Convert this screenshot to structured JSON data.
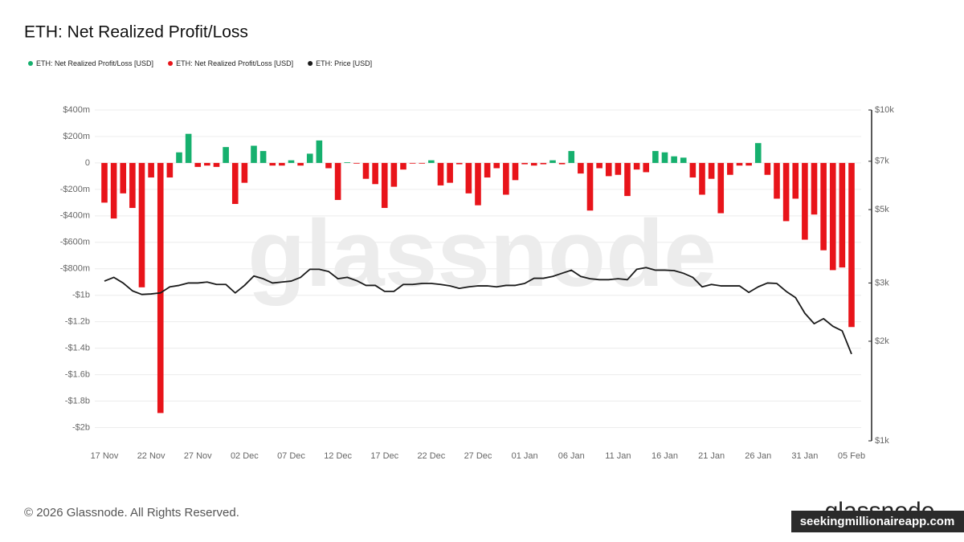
{
  "chart_data": {
    "type": "bar",
    "title": "ETH: Net Realized Profit/Loss",
    "watermark": "glassnode",
    "footer": "© 2026 Glassnode. All Rights Reserved.",
    "logo": "glassnode",
    "overlay_label": "seekingmillionaireapp.com",
    "categories": [
      "17 Nov",
      null,
      null,
      null,
      null,
      "22 Nov",
      null,
      null,
      null,
      null,
      "27 Nov",
      null,
      null,
      null,
      null,
      "02 Dec",
      null,
      null,
      null,
      null,
      "07 Dec",
      null,
      null,
      null,
      null,
      "12 Dec",
      null,
      null,
      null,
      null,
      "17 Dec",
      null,
      null,
      null,
      null,
      "22 Dec",
      null,
      null,
      null,
      null,
      "27 Dec",
      null,
      null,
      null,
      null,
      "01 Jan",
      null,
      null,
      null,
      null,
      "06 Jan",
      null,
      null,
      null,
      null,
      "11 Jan",
      null,
      null,
      null,
      null,
      "16 Jan",
      null,
      null,
      null,
      null,
      "21 Jan",
      null,
      null,
      null,
      null,
      "26 Jan",
      null,
      null,
      null,
      null,
      "31 Jan",
      null,
      null,
      null,
      null,
      "05 Feb"
    ],
    "series": [
      {
        "name": "ETH: Net Realized Profit/Loss [USD]",
        "color": "#16b06e",
        "values": [
          null,
          null,
          null,
          null,
          null,
          null,
          null,
          null,
          80000000,
          220000000,
          null,
          null,
          null,
          120000000,
          null,
          null,
          130000000,
          90000000,
          null,
          null,
          20000000,
          null,
          70000000,
          170000000,
          null,
          null,
          5000000,
          null,
          null,
          null,
          null,
          null,
          null,
          null,
          null,
          20000000,
          null,
          null,
          null,
          null,
          null,
          null,
          null,
          null,
          null,
          null,
          null,
          null,
          20000000,
          null,
          90000000,
          null,
          null,
          null,
          null,
          null,
          null,
          null,
          null,
          90000000,
          80000000,
          50000000,
          40000000,
          null,
          null,
          null,
          null,
          null,
          null,
          null,
          150000000,
          null,
          null,
          null,
          null,
          null,
          null,
          null,
          null,
          null,
          null
        ]
      },
      {
        "name": "ETH: Net Realized Profit/Loss [USD]",
        "color": "#e8141a",
        "values": [
          -300000000,
          -420000000,
          -230000000,
          -340000000,
          -940000000,
          -110000000,
          -1890000000,
          -110000000,
          null,
          null,
          -30000000,
          -20000000,
          -30000000,
          null,
          -310000000,
          -150000000,
          null,
          null,
          -20000000,
          -20000000,
          null,
          -20000000,
          null,
          null,
          -40000000,
          -280000000,
          null,
          -5000000,
          -120000000,
          -160000000,
          -340000000,
          -180000000,
          -50000000,
          -5000000,
          -5000000,
          null,
          -170000000,
          -150000000,
          -10000000,
          -230000000,
          -320000000,
          -110000000,
          -40000000,
          -240000000,
          -130000000,
          -10000000,
          -20000000,
          -10000000,
          null,
          -10000000,
          null,
          -80000000,
          -360000000,
          -40000000,
          -100000000,
          -90000000,
          -250000000,
          -50000000,
          -70000000,
          null,
          null,
          null,
          null,
          -110000000,
          -240000000,
          -120000000,
          -380000000,
          -90000000,
          -20000000,
          -20000000,
          null,
          -90000000,
          -270000000,
          -440000000,
          -270000000,
          -580000000,
          -390000000,
          -660000000,
          -810000000,
          -790000000,
          -1240000000
        ]
      },
      {
        "name": "ETH: Price [USD]",
        "color": "#1a1a1a",
        "type": "line",
        "axis": "y2",
        "values": [
          3040,
          3120,
          3000,
          2840,
          2770,
          2780,
          2800,
          2920,
          2950,
          3000,
          3000,
          3020,
          2970,
          2970,
          2800,
          2950,
          3150,
          3090,
          3000,
          3020,
          3040,
          3120,
          3300,
          3300,
          3250,
          3090,
          3120,
          3050,
          2950,
          2950,
          2830,
          2830,
          2970,
          2970,
          2990,
          2990,
          2970,
          2940,
          2890,
          2920,
          2940,
          2940,
          2920,
          2950,
          2950,
          2990,
          3100,
          3100,
          3140,
          3210,
          3280,
          3140,
          3090,
          3070,
          3070,
          3090,
          3070,
          3300,
          3340,
          3280,
          3280,
          3270,
          3210,
          3120,
          2920,
          2970,
          2940,
          2940,
          2940,
          2810,
          2920,
          3000,
          2990,
          2830,
          2710,
          2430,
          2260,
          2340,
          2220,
          2150,
          1830
        ]
      }
    ],
    "ylim": [
      -2100000000,
      400000000
    ],
    "yticks": [
      {
        "value": 400000000,
        "label": "$400m"
      },
      {
        "value": 200000000,
        "label": "$200m"
      },
      0,
      {
        "value": -200000000,
        "label": "-$200m"
      },
      {
        "value": -400000000,
        "label": "-$400m"
      },
      {
        "value": -600000000,
        "label": "-$600m"
      },
      {
        "value": -800000000,
        "label": "-$800m"
      },
      {
        "value": -1000000000,
        "label": "-$1b"
      },
      {
        "value": -1200000000,
        "label": "-$1.2b"
      },
      {
        "value": -1400000000,
        "label": "-$1.4b"
      },
      {
        "value": -1600000000,
        "label": "-$1.6b"
      },
      {
        "value": -1800000000,
        "label": "-$1.8b"
      },
      {
        "value": -2000000000,
        "label": "-$2b"
      }
    ],
    "y2lim": [
      1000,
      10000
    ],
    "y2log": true,
    "y2ticks": [
      {
        "value": 1000,
        "label": "$1k"
      },
      {
        "value": 2000,
        "label": "$2k"
      },
      {
        "value": 3000,
        "label": "$3k"
      },
      {
        "value": 5000,
        "label": "$5k"
      },
      {
        "value": 7000,
        "label": "$7k"
      },
      {
        "value": 10000,
        "label": "$10k"
      }
    ],
    "grid": true,
    "legend": "top-left"
  }
}
